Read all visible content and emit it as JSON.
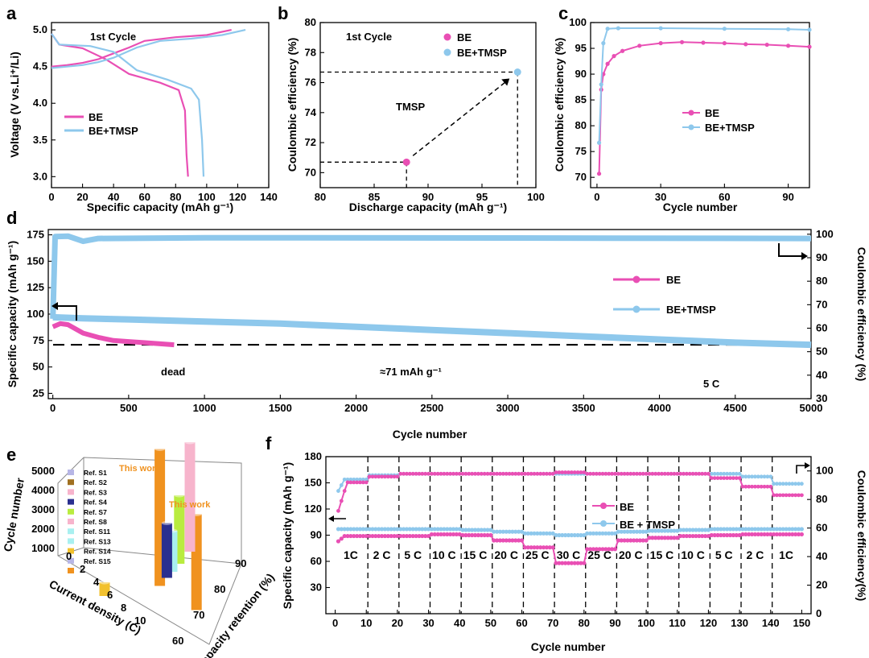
{
  "colors": {
    "be": "#e94fb4",
    "tmsp": "#8ec8ec",
    "be_dark": "#d4379c",
    "tmsp_dark": "#6fb0df",
    "ref_orange": "#f0921f",
    "ref_gold": "#f2c12e",
    "ref_navy": "#2a2f8f",
    "ref_lavender": "#b7b6e6",
    "ref_pink": "#f7b4cc",
    "ref_green": "#b9ec3f",
    "ref_cyan": "#a9f0f0"
  },
  "chart_data": [
    {
      "panel": "a",
      "type": "line",
      "title": "1st Cycle",
      "xlabel": "Specific capacity (mAh g⁻¹)",
      "ylabel": "Voltage (V vs.Li⁺/Li)",
      "xlim": [
        0,
        140
      ],
      "ylim": [
        2.85,
        5.1
      ],
      "xticks": [
        0,
        20,
        40,
        60,
        80,
        100,
        120,
        140
      ],
      "yticks": [
        3.0,
        3.5,
        4.0,
        4.5,
        5.0
      ],
      "legend": [
        "BE",
        "BE+TMSP"
      ],
      "series": [
        {
          "name": "BE",
          "color": "be",
          "charge": [
            [
              0,
              4.5
            ],
            [
              10,
              4.52
            ],
            [
              20,
              4.55
            ],
            [
              30,
              4.6
            ],
            [
              40,
              4.68
            ],
            [
              50,
              4.76
            ],
            [
              60,
              4.85
            ],
            [
              80,
              4.9
            ],
            [
              100,
              4.93
            ],
            [
              116,
              5.0
            ]
          ],
          "discharge": [
            [
              0,
              4.95
            ],
            [
              5,
              4.8
            ],
            [
              20,
              4.75
            ],
            [
              35,
              4.6
            ],
            [
              50,
              4.4
            ],
            [
              70,
              4.28
            ],
            [
              82,
              4.18
            ],
            [
              86,
              3.9
            ],
            [
              87,
              3.3
            ],
            [
              88,
              3.0
            ]
          ]
        },
        {
          "name": "BE+TMSP",
          "color": "tmsp",
          "charge": [
            [
              0,
              4.48
            ],
            [
              10,
              4.5
            ],
            [
              20,
              4.52
            ],
            [
              30,
              4.56
            ],
            [
              40,
              4.62
            ],
            [
              55,
              4.76
            ],
            [
              70,
              4.85
            ],
            [
              90,
              4.88
            ],
            [
              110,
              4.93
            ],
            [
              125,
              5.0
            ]
          ],
          "discharge": [
            [
              0,
              4.95
            ],
            [
              5,
              4.8
            ],
            [
              25,
              4.78
            ],
            [
              40,
              4.7
            ],
            [
              55,
              4.45
            ],
            [
              75,
              4.32
            ],
            [
              90,
              4.2
            ],
            [
              95,
              4.05
            ],
            [
              97,
              3.5
            ],
            [
              98,
              3.0
            ]
          ]
        }
      ]
    },
    {
      "panel": "b",
      "type": "scatter",
      "title": "1st Cycle",
      "xlabel": "Discharge capacity (mAh g⁻¹)",
      "ylabel": "Coulombic efficiency (%)",
      "xlim": [
        80,
        100
      ],
      "ylim": [
        69,
        80
      ],
      "xticks": [
        80,
        85,
        90,
        95,
        100
      ],
      "yticks": [
        70,
        72,
        74,
        76,
        78,
        80
      ],
      "points": [
        {
          "name": "BE",
          "x": 88,
          "y": 70.7,
          "color": "be"
        },
        {
          "name": "BE+TMSP",
          "x": 98.3,
          "y": 76.7,
          "color": "tmsp"
        }
      ],
      "annotation": "TMSP"
    },
    {
      "panel": "c",
      "type": "line",
      "xlabel": "Cycle number",
      "ylabel": "Coulombic efficiency (%)",
      "xlim": [
        -3,
        100
      ],
      "ylim": [
        68,
        100
      ],
      "xticks": [
        0,
        30,
        60,
        90
      ],
      "yticks": [
        70,
        75,
        80,
        85,
        90,
        95,
        100
      ],
      "series": [
        {
          "name": "BE",
          "color": "be",
          "points": [
            [
              1,
              70.7
            ],
            [
              2,
              87
            ],
            [
              3,
              90
            ],
            [
              5,
              92
            ],
            [
              8,
              93.5
            ],
            [
              12,
              94.5
            ],
            [
              20,
              95.5
            ],
            [
              30,
              96
            ],
            [
              40,
              96.2
            ],
            [
              50,
              96.1
            ],
            [
              60,
              96
            ],
            [
              70,
              95.8
            ],
            [
              80,
              95.7
            ],
            [
              90,
              95.5
            ],
            [
              100,
              95.3
            ]
          ]
        },
        {
          "name": "BE+TMSP",
          "color": "tmsp",
          "points": [
            [
              1,
              76.7
            ],
            [
              2,
              88
            ],
            [
              3,
              96
            ],
            [
              5,
              98.8
            ],
            [
              10,
              98.9
            ],
            [
              30,
              98.9
            ],
            [
              60,
              98.8
            ],
            [
              90,
              98.7
            ],
            [
              100,
              98.6
            ]
          ]
        }
      ],
      "legend": [
        "BE",
        "BE+TMSP"
      ]
    },
    {
      "panel": "d",
      "type": "line",
      "xlabel": "Cycle number",
      "ylabel": "Specific capacity (mAh g⁻¹)",
      "y2label": "Coulombic efficiency (%)",
      "xlim": [
        -30,
        5000
      ],
      "ylim": [
        20,
        180
      ],
      "y2lim": [
        30,
        102
      ],
      "xticks": [
        0,
        500,
        1000,
        1500,
        2000,
        2500,
        3000,
        3500,
        4000,
        4500,
        5000
      ],
      "yticks": [
        25,
        50,
        75,
        100,
        125,
        150,
        175
      ],
      "y2ticks": [
        30,
        40,
        50,
        60,
        70,
        80,
        90,
        100
      ],
      "series_capacity": [
        {
          "name": "BE",
          "color": "be",
          "points": [
            [
              0,
              88
            ],
            [
              50,
              91
            ],
            [
              100,
              90
            ],
            [
              200,
              82
            ],
            [
              300,
              78
            ],
            [
              400,
              75
            ],
            [
              500,
              74
            ],
            [
              600,
              73
            ],
            [
              700,
              72
            ],
            [
              800,
              71
            ]
          ]
        },
        {
          "name": "BE+TMSP",
          "color": "tmsp",
          "points": [
            [
              0,
              97
            ],
            [
              200,
              96
            ],
            [
              500,
              95
            ],
            [
              1000,
              93
            ],
            [
              1500,
              91
            ],
            [
              2000,
              88
            ],
            [
              2500,
              85
            ],
            [
              3000,
              82
            ],
            [
              3500,
              79
            ],
            [
              4000,
              76
            ],
            [
              4500,
              73
            ],
            [
              5000,
              71
            ]
          ]
        }
      ],
      "series_ce": [
        {
          "name": "BE+TMSP CE",
          "color": "tmsp",
          "points": [
            [
              0,
              64
            ],
            [
              15,
              99
            ],
            [
              100,
              99.2
            ],
            [
              200,
              97
            ],
            [
              300,
              98.2
            ],
            [
              1000,
              98.5
            ],
            [
              3000,
              98.4
            ],
            [
              5000,
              98.2
            ]
          ]
        }
      ],
      "reference_line": {
        "y": 71,
        "label": "≈71 mAh g⁻¹"
      },
      "annotations": {
        "dead": "dead",
        "rate": "5 C"
      },
      "legend": [
        "BE",
        "BE+TMSP"
      ]
    },
    {
      "panel": "e",
      "type": "bar3d",
      "xlabel": "Current density (C)",
      "ylabel": "Capacity retention (%)",
      "zlabel": "Cycle number",
      "xticks": [
        0,
        2,
        4,
        6,
        8,
        10
      ],
      "yticks": [
        60,
        70,
        80,
        90
      ],
      "zticks": [
        1000,
        2000,
        3000,
        4000,
        5000
      ],
      "legend": [
        "Ref. S1",
        "Ref. S2",
        "Ref. S3",
        "Ref. S4",
        "Ref. S7",
        "Ref. S8",
        "Ref. S11",
        "Ref. S13",
        "Ref. S14",
        "Ref. S15",
        ""
      ],
      "legend_colors": [
        "ref_lavender",
        "#a07020",
        "ref_pink",
        "ref_navy",
        "ref_green",
        "ref_pink",
        "ref_cyan",
        "ref_cyan",
        "ref_gold",
        "ref_lavender",
        "ref_orange"
      ],
      "highlight_label": "This work",
      "bars": [
        {
          "name": "This work (BE+TMSP)",
          "current_c": 5,
          "retention": 73,
          "cycles": 5000,
          "color": "ref_orange"
        },
        {
          "name": "This work",
          "current_c": 10,
          "retention": 71,
          "cycles": 3500,
          "color": "ref_orange"
        },
        {
          "name": "Ref. S8",
          "current_c": 5,
          "retention": 90,
          "cycles": 4000,
          "color": "ref_pink"
        },
        {
          "name": "Ref. S7",
          "current_c": 5,
          "retention": 84,
          "cycles": 2500,
          "color": "ref_green"
        },
        {
          "name": "Ref. S11",
          "current_c": 5,
          "retention": 80,
          "cycles": 1500,
          "color": "ref_cyan"
        },
        {
          "name": "Ref. S14",
          "current_c": 1,
          "retention": 60,
          "cycles": 500,
          "color": "ref_gold"
        },
        {
          "name": "Ref. S4",
          "current_c": 5,
          "retention": 77,
          "cycles": 2000,
          "color": "ref_navy"
        }
      ]
    },
    {
      "panel": "f",
      "type": "line",
      "xlabel": "Cycle number",
      "ylabel": "Specific capacity (mAh g⁻¹)",
      "y2label": "Coulombic efficiency(%)",
      "xlim": [
        -3,
        153
      ],
      "ylim": [
        0,
        180
      ],
      "y2lim": [
        0,
        110
      ],
      "xticks": [
        0,
        10,
        20,
        30,
        40,
        50,
        60,
        70,
        80,
        90,
        100,
        110,
        120,
        130,
        140,
        150
      ],
      "yticks": [
        30,
        60,
        90,
        120,
        150,
        180
      ],
      "y2ticks": [
        0,
        20,
        40,
        60,
        80,
        100
      ],
      "rate_labels": [
        "1C",
        "2 C",
        "5 C",
        "10 C",
        "15 C",
        "20 C",
        "25 C",
        "30 C",
        "25 C",
        "20 C",
        "15 C",
        "10 C",
        "5 C",
        "2 C",
        "1C"
      ],
      "segments": [
        {
          "rate": "1C",
          "be": 89,
          "tmsp": 97
        },
        {
          "rate": "2 C",
          "be": 89,
          "tmsp": 97
        },
        {
          "rate": "5 C",
          "be": 89,
          "tmsp": 97
        },
        {
          "rate": "10 C",
          "be": 91,
          "tmsp": 97
        },
        {
          "rate": "15 C",
          "be": 90,
          "tmsp": 96
        },
        {
          "rate": "20 C",
          "be": 84,
          "tmsp": 94
        },
        {
          "rate": "25 C",
          "be": 76,
          "tmsp": 92
        },
        {
          "rate": "30 C",
          "be": 58,
          "tmsp": 90
        },
        {
          "rate": "25 C",
          "be": 74,
          "tmsp": 92
        },
        {
          "rate": "20 C",
          "be": 84,
          "tmsp": 94
        },
        {
          "rate": "15 C",
          "be": 87,
          "tmsp": 95
        },
        {
          "rate": "10 C",
          "be": 89,
          "tmsp": 96
        },
        {
          "rate": "5 C",
          "be": 90,
          "tmsp": 97
        },
        {
          "rate": "2 C",
          "be": 91,
          "tmsp": 97
        },
        {
          "rate": "1C",
          "be": 91,
          "tmsp": 97
        }
      ],
      "ce_be": [
        92,
        96,
        98,
        98,
        98,
        98,
        98,
        99,
        98,
        98,
        98,
        98,
        95,
        89,
        83
      ],
      "ce_tmsp": [
        94,
        97,
        98,
        98,
        98,
        98,
        98,
        98,
        98,
        98,
        98,
        98,
        98,
        96,
        91
      ],
      "legend": [
        "BE",
        "BE + TMSP"
      ]
    }
  ],
  "labels": {
    "a": {
      "panel": "a",
      "title": "1st Cycle",
      "xlabel": "Specific capacity (mAh g⁻¹)",
      "ylabel": "Voltage (V vs.Li⁺/Li)",
      "legend_be": "BE",
      "legend_tmsp": "BE+TMSP"
    },
    "b": {
      "panel": "b",
      "title": "1st Cycle",
      "xlabel": "Discharge capacity (mAh g⁻¹)",
      "ylabel": "Coulombic efficiency (%)",
      "legend_be": "BE",
      "legend_tmsp": "BE+TMSP",
      "annotation": "TMSP"
    },
    "c": {
      "panel": "c",
      "xlabel": "Cycle number",
      "ylabel": "Coulombic efficiency (%)",
      "legend_be": "BE",
      "legend_tmsp": "BE+TMSP"
    },
    "d": {
      "panel": "d",
      "xlabel": "Cycle number",
      "ylabel": "Specific capacity (mAh g⁻¹)",
      "y2label": "Coulombic efficiency (%)",
      "legend_be": "BE",
      "legend_tmsp": "BE+TMSP",
      "dead": "dead",
      "ref": "≈71 mAh g⁻¹",
      "rate": "5 C"
    },
    "e": {
      "panel": "e",
      "xlabel": "Current density (C)",
      "ylabel": "Capacity retention (%)",
      "zlabel": "Cycle number",
      "this_work_1": "This work",
      "this_work_2": "This work"
    },
    "f": {
      "panel": "f",
      "xlabel": "Cycle number",
      "ylabel": "Specific capacity (mAh g⁻¹)",
      "y2label": "Coulombic efficiency(%)",
      "legend_be": "BE",
      "legend_tmsp": "BE + TMSP"
    }
  }
}
